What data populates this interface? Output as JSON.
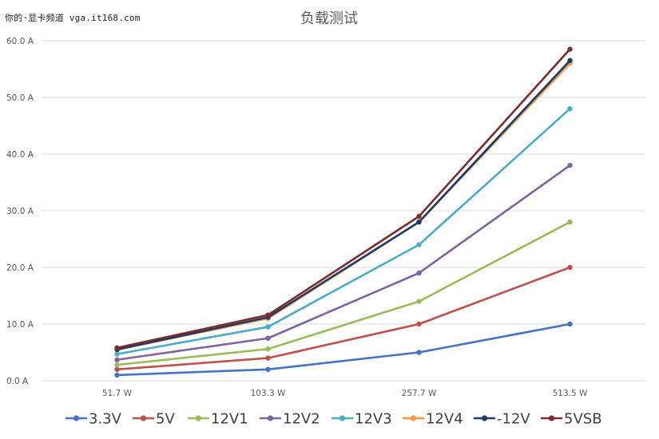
{
  "watermark": "你的·显卡频道 vga.it168.com",
  "chart_data": {
    "type": "line",
    "title": "负载测试",
    "categories": [
      "51.7  W",
      "103.3  W",
      "257.7  W",
      "513.5  W"
    ],
    "yticks": [
      "0.0  A",
      "10.0  A",
      "20.0  A",
      "30.0  A",
      "40.0  A",
      "50.0  A",
      "60.0  A"
    ],
    "ylim": [
      0,
      60
    ],
    "grid": true,
    "legend_position": "bottom",
    "series": [
      {
        "name": "3.3V",
        "color": "#4472C4",
        "values": [
          1.0,
          2.0,
          5.0,
          10.0
        ]
      },
      {
        "name": "5V",
        "color": "#C0504D",
        "values": [
          2.0,
          4.0,
          10.0,
          20.0
        ]
      },
      {
        "name": "12V1",
        "color": "#9BBB59",
        "values": [
          2.8,
          5.6,
          14.0,
          28.0
        ]
      },
      {
        "name": "12V2",
        "color": "#8064A2",
        "values": [
          3.7,
          7.5,
          19.0,
          38.0
        ]
      },
      {
        "name": "12V3",
        "color": "#4BACC6",
        "values": [
          4.7,
          9.5,
          24.0,
          48.0
        ]
      },
      {
        "name": "12V4",
        "color": "#F79646",
        "values": [
          5.5,
          11.0,
          28.0,
          56.0
        ]
      },
      {
        "name": "-12V",
        "color": "#1F3864",
        "values": [
          5.5,
          11.2,
          28.0,
          56.5
        ]
      },
      {
        "name": "5VSB",
        "color": "#7B2C2C",
        "values": [
          5.8,
          11.6,
          29.0,
          58.5
        ]
      }
    ]
  }
}
